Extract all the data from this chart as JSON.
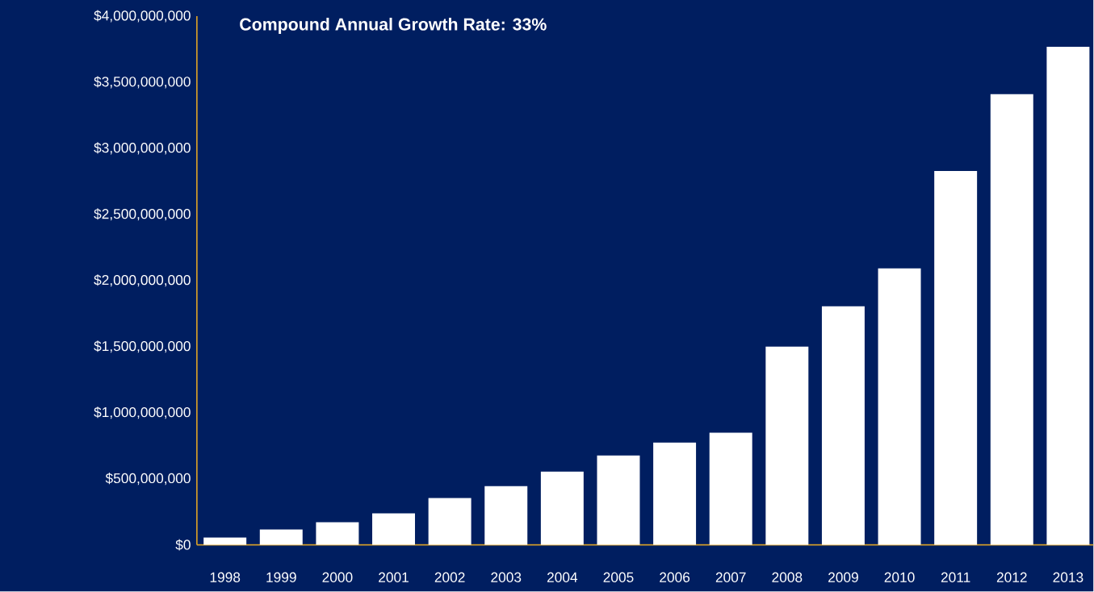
{
  "chart_data": {
    "type": "bar",
    "title": "**Compound Annual Growth Rate: 33%**",
    "categories": [
      "1998",
      "1999",
      "2000",
      "2001",
      "2002",
      "2003",
      "2004",
      "2005",
      "2006",
      "2007",
      "2008",
      "2009",
      "2010",
      "2011",
      "2012",
      "2013"
    ],
    "values": [
      55000000,
      116000000,
      171000000,
      238000000,
      354000000,
      445000000,
      555000000,
      677000000,
      774000000,
      848000000,
      1500000000,
      1805000000,
      2091000000,
      2829000000,
      3409000000,
      3768000000
    ],
    "color": "#ffffff",
    "ylim": [
      0,
      4000000000
    ],
    "yticks": [
      {
        "value": 0,
        "label": "$0"
      },
      {
        "value": 500000000,
        "label": "$500,000,000"
      },
      {
        "value": 1000000000,
        "label": "$1,000,000,000"
      },
      {
        "value": 1500000000,
        "label": "$1,500,000,000"
      },
      {
        "value": 2000000000,
        "label": "$2,000,000,000"
      },
      {
        "value": 2500000000,
        "label": "$2,500,000,000"
      },
      {
        "value": 3000000000,
        "label": "$3,000,000,000"
      },
      {
        "value": 3500000000,
        "label": "$3,500,000,000"
      },
      {
        "value": 4000000000,
        "label": "$4,000,000,000"
      }
    ]
  }
}
